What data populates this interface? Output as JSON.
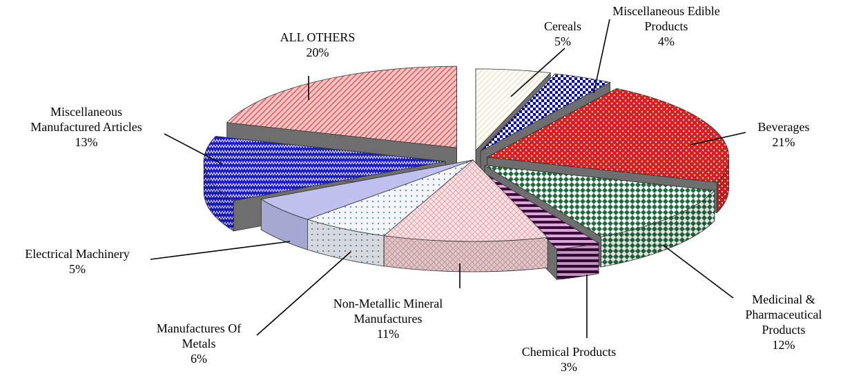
{
  "chart_data": {
    "type": "pie",
    "title": "",
    "exploded": true,
    "three_d": true,
    "slices": [
      {
        "label_lines": [
          "Cereals"
        ],
        "value": 5,
        "value_label": "5%",
        "color": "#f3d9b0",
        "pattern": "diag"
      },
      {
        "label_lines": [
          "Miscellaneous Edible",
          "Products"
        ],
        "value": 4,
        "value_label": "4%",
        "color": "#0000c8",
        "pattern": "check"
      },
      {
        "label_lines": [
          "Beverages"
        ],
        "value": 21,
        "value_label": "21%",
        "color": "#e31b1b",
        "pattern": "dots"
      },
      {
        "label_lines": [
          "Medicinal &",
          "Pharmaceutical",
          "Products"
        ],
        "value": 12,
        "value_label": "12%",
        "color": "#1f6b3e",
        "pattern": "diamond"
      },
      {
        "label_lines": [
          "Chemical Products"
        ],
        "value": 3,
        "value_label": "3%",
        "color": "#3b0a3a",
        "pattern": "hstripe"
      },
      {
        "label_lines": [
          "Non-Metallic Mineral",
          "Manufactures"
        ],
        "value": 11,
        "value_label": "11%",
        "color": "#e8a7ad",
        "pattern": "cross"
      },
      {
        "label_lines": [
          "Manufactures Of",
          "Metals"
        ],
        "value": 6,
        "value_label": "6%",
        "color": "#2c7ab8",
        "pattern": "sparse"
      },
      {
        "label_lines": [
          "Electrical Machinery"
        ],
        "value": 5,
        "value_label": "5%",
        "color": "#bfc0ee",
        "pattern": "solid"
      },
      {
        "label_lines": [
          "Miscellaneous",
          "Manufactured Articles"
        ],
        "value": 13,
        "value_label": "13%",
        "color": "#1a1acc",
        "pattern": "zigzag"
      },
      {
        "label_lines": [
          "ALL OTHERS"
        ],
        "value": 20,
        "value_label": "20%",
        "color": "#e85a5a",
        "pattern": "diag2"
      }
    ]
  }
}
